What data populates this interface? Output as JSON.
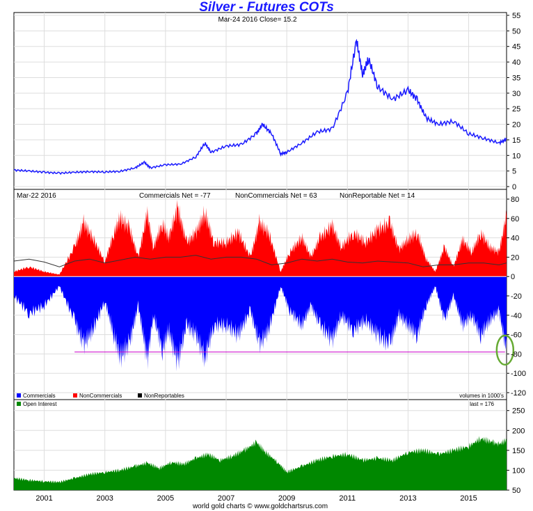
{
  "title": "Silver - Futures COTs",
  "footer": "world gold charts © www.goldchartsrus.com",
  "chart_data": [
    {
      "type": "line",
      "name": "price-panel",
      "subtitle": "Mar-24 2016   Close= 15.2",
      "ylim": [
        0,
        55
      ],
      "yticks": [
        0,
        5,
        10,
        15,
        20,
        25,
        30,
        35,
        40,
        45,
        50,
        55
      ],
      "x_range": [
        2000.0,
        2016.25
      ],
      "color": "#1a1aff",
      "series": [
        {
          "x": [
            2000.0,
            2000.5,
            2001.0,
            2001.5,
            2002.0,
            2002.5,
            2003.0,
            2003.5,
            2004.0,
            2004.3,
            2004.5,
            2005.0,
            2005.5,
            2006.0,
            2006.3,
            2006.5,
            2007.0,
            2007.5,
            2008.0,
            2008.2,
            2008.5,
            2008.8,
            2009.0,
            2009.5,
            2010.0,
            2010.5,
            2011.0,
            2011.3,
            2011.5,
            2011.7,
            2012.0,
            2012.5,
            2013.0,
            2013.3,
            2013.6,
            2014.0,
            2014.5,
            2015.0,
            2015.5,
            2016.0,
            2016.25
          ],
          "y": [
            5.3,
            5.0,
            4.6,
            4.3,
            4.6,
            4.8,
            4.7,
            4.9,
            6.0,
            7.8,
            6.0,
            7.0,
            7.2,
            9.5,
            14.0,
            11.0,
            13.0,
            13.5,
            17.0,
            20.0,
            17.0,
            10.5,
            11.0,
            14.0,
            17.5,
            18.5,
            30.0,
            47.0,
            36.0,
            41.0,
            32.0,
            28.0,
            31.0,
            28.0,
            22.0,
            20.0,
            21.0,
            17.0,
            15.5,
            14.0,
            15.2
          ]
        }
      ]
    },
    {
      "type": "area",
      "name": "cot-panel",
      "date_label": "Mar-22  2016",
      "headline": {
        "commercials": "Commercials Net = -77",
        "noncommercials": "NonCommercials Net = 63",
        "nonreportable": "NonReportable Net = 14"
      },
      "ylim": [
        -120,
        80
      ],
      "yticks": [
        -120,
        -100,
        -80,
        -60,
        -40,
        -20,
        0,
        20,
        40,
        60,
        80
      ],
      "x_range": [
        2000.0,
        2016.25
      ],
      "legend": [
        "Commercials",
        "NonCommercials",
        "NonReportables"
      ],
      "volume_note": "volumes in 1000's",
      "reference_line": {
        "y": -78,
        "x_start": 2002.0,
        "x_end": 2016.2,
        "color": "#cc00cc"
      },
      "highlight_circle": {
        "x": 2016.2,
        "y": -76,
        "color": "#66aa33"
      },
      "series": [
        {
          "name": "Commercials",
          "color": "#0000ff",
          "x": [
            2000.0,
            2000.5,
            2001.0,
            2001.5,
            2002.0,
            2002.3,
            2002.6,
            2003.0,
            2003.3,
            2003.5,
            2003.8,
            2004.1,
            2004.4,
            2004.6,
            2004.9,
            2005.1,
            2005.4,
            2005.7,
            2006.0,
            2006.3,
            2006.6,
            2007.0,
            2007.4,
            2007.8,
            2008.1,
            2008.4,
            2008.8,
            2009.1,
            2009.5,
            2009.8,
            2010.1,
            2010.5,
            2010.8,
            2011.2,
            2011.6,
            2012.0,
            2012.4,
            2012.7,
            2013.0,
            2013.3,
            2013.6,
            2013.9,
            2014.2,
            2014.5,
            2014.8,
            2015.1,
            2015.4,
            2015.7,
            2016.0,
            2016.25
          ],
          "y": [
            -20,
            -38,
            -30,
            -10,
            -45,
            -70,
            -55,
            -25,
            -60,
            -82,
            -70,
            -30,
            -85,
            -40,
            -75,
            -55,
            -88,
            -50,
            -60,
            -83,
            -50,
            -50,
            -60,
            -35,
            -70,
            -55,
            -10,
            -35,
            -50,
            -30,
            -50,
            -65,
            -40,
            -55,
            -45,
            -60,
            -70,
            -40,
            -50,
            -60,
            -30,
            -10,
            -45,
            -20,
            -50,
            -40,
            -60,
            -45,
            -35,
            -77
          ]
        },
        {
          "name": "NonCommercials",
          "color": "#ff0000",
          "x": [
            2000.0,
            2000.5,
            2001.0,
            2001.5,
            2002.0,
            2002.3,
            2002.6,
            2003.0,
            2003.3,
            2003.5,
            2003.8,
            2004.1,
            2004.4,
            2004.6,
            2004.9,
            2005.1,
            2005.4,
            2005.7,
            2006.0,
            2006.3,
            2006.6,
            2007.0,
            2007.4,
            2007.8,
            2008.1,
            2008.4,
            2008.8,
            2009.1,
            2009.5,
            2009.8,
            2010.1,
            2010.5,
            2010.8,
            2011.2,
            2011.6,
            2012.0,
            2012.4,
            2012.7,
            2013.0,
            2013.3,
            2013.6,
            2013.9,
            2014.2,
            2014.5,
            2014.8,
            2015.1,
            2015.4,
            2015.7,
            2016.0,
            2016.25
          ],
          "y": [
            5,
            10,
            5,
            2,
            30,
            55,
            40,
            15,
            45,
            60,
            50,
            20,
            65,
            30,
            55,
            40,
            70,
            35,
            45,
            65,
            35,
            35,
            45,
            20,
            55,
            45,
            5,
            25,
            40,
            20,
            40,
            52,
            30,
            45,
            35,
            48,
            55,
            28,
            38,
            45,
            18,
            5,
            30,
            10,
            38,
            25,
            45,
            30,
            25,
            63
          ]
        },
        {
          "name": "NonReportables",
          "color": "#000000",
          "x": [
            2000.0,
            2000.5,
            2001.0,
            2001.5,
            2002.0,
            2002.5,
            2003.0,
            2003.5,
            2004.0,
            2004.5,
            2005.0,
            2005.5,
            2006.0,
            2006.5,
            2007.0,
            2007.5,
            2008.0,
            2008.5,
            2009.0,
            2009.5,
            2010.0,
            2010.5,
            2011.0,
            2011.5,
            2012.0,
            2012.5,
            2013.0,
            2013.5,
            2014.0,
            2014.5,
            2015.0,
            2015.5,
            2016.0,
            2016.25
          ],
          "y": [
            16,
            18,
            15,
            10,
            16,
            18,
            14,
            17,
            20,
            18,
            20,
            20,
            22,
            18,
            20,
            20,
            18,
            12,
            14,
            18,
            16,
            18,
            15,
            14,
            16,
            15,
            14,
            10,
            12,
            12,
            14,
            14,
            12,
            14
          ]
        }
      ]
    },
    {
      "type": "area",
      "name": "open-interest-panel",
      "legend": [
        "Open Interest"
      ],
      "last_label": "last = 176",
      "ylim": [
        50,
        260
      ],
      "yticks": [
        50,
        100,
        150,
        200,
        250
      ],
      "x_range": [
        2000.0,
        2016.25
      ],
      "xticks": [
        "2001",
        "2003",
        "2005",
        "2007",
        "2009",
        "2011",
        "2013",
        "2015"
      ],
      "xtick_values": [
        2001,
        2003,
        2005,
        2007,
        2009,
        2011,
        2013,
        2015
      ],
      "color": "#008800",
      "series": [
        {
          "name": "Open Interest",
          "x": [
            2000.0,
            2000.5,
            2001.0,
            2001.5,
            2002.0,
            2002.5,
            2003.0,
            2003.5,
            2004.0,
            2004.4,
            2004.8,
            2005.2,
            2005.6,
            2006.0,
            2006.4,
            2006.8,
            2007.2,
            2007.6,
            2008.0,
            2008.3,
            2008.7,
            2009.0,
            2009.5,
            2010.0,
            2010.5,
            2011.0,
            2011.5,
            2012.0,
            2012.5,
            2013.0,
            2013.5,
            2014.0,
            2014.5,
            2015.0,
            2015.4,
            2015.8,
            2016.0,
            2016.25
          ],
          "y": [
            80,
            75,
            72,
            70,
            80,
            90,
            95,
            100,
            110,
            118,
            105,
            120,
            115,
            130,
            140,
            125,
            135,
            150,
            170,
            145,
            120,
            95,
            110,
            125,
            135,
            140,
            125,
            130,
            125,
            145,
            150,
            140,
            150,
            160,
            180,
            170,
            165,
            176
          ]
        }
      ]
    }
  ]
}
